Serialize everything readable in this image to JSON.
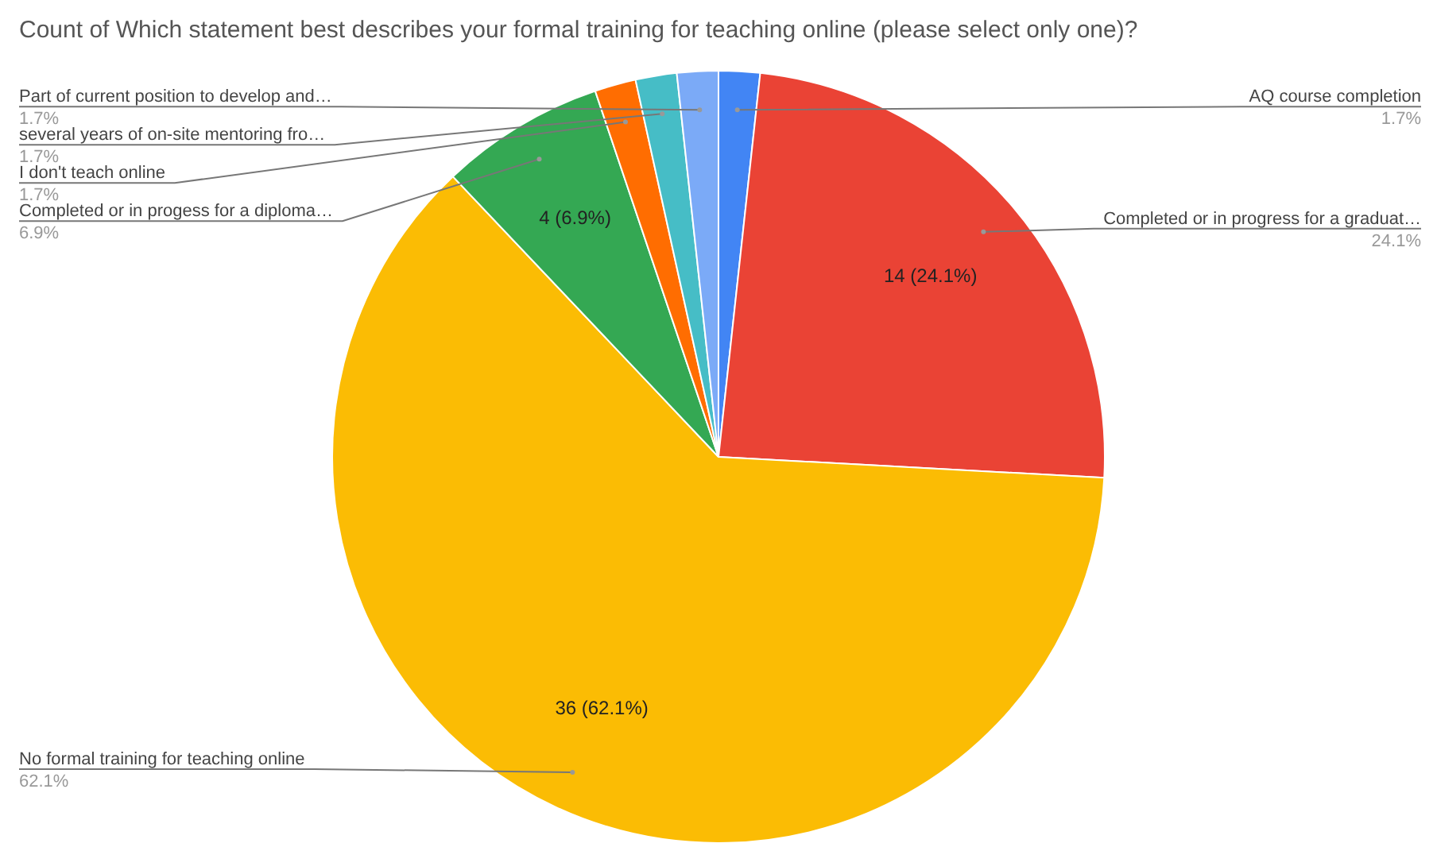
{
  "chart_data": {
    "type": "pie",
    "title": "Count of Which statement best describes your formal training for teaching online (please select only one)?",
    "categories": [
      "AQ course completion",
      "Completed or in progress for a graduat…",
      "No formal training for teaching online",
      "Completed or in progess for a diploma…",
      "I don't teach online",
      "several years of on-site mentoring fro…",
      "Part of current position to develop and…"
    ],
    "values": [
      1,
      14,
      36,
      4,
      1,
      1,
      1
    ],
    "colors": [
      "#4285f4",
      "#ea4335",
      "#fbbc04",
      "#34a853",
      "#ff6d01",
      "#46bdc6",
      "#7baaf7"
    ],
    "value_labels": [
      null,
      "14 (24.1%)",
      "36 (62.1%)",
      "4 (6.9%)",
      null,
      null,
      null
    ],
    "annotations": [
      "1.7%",
      "24.1%",
      "62.1%",
      "6.9%",
      "1.7%",
      "1.7%",
      "1.7%"
    ]
  }
}
